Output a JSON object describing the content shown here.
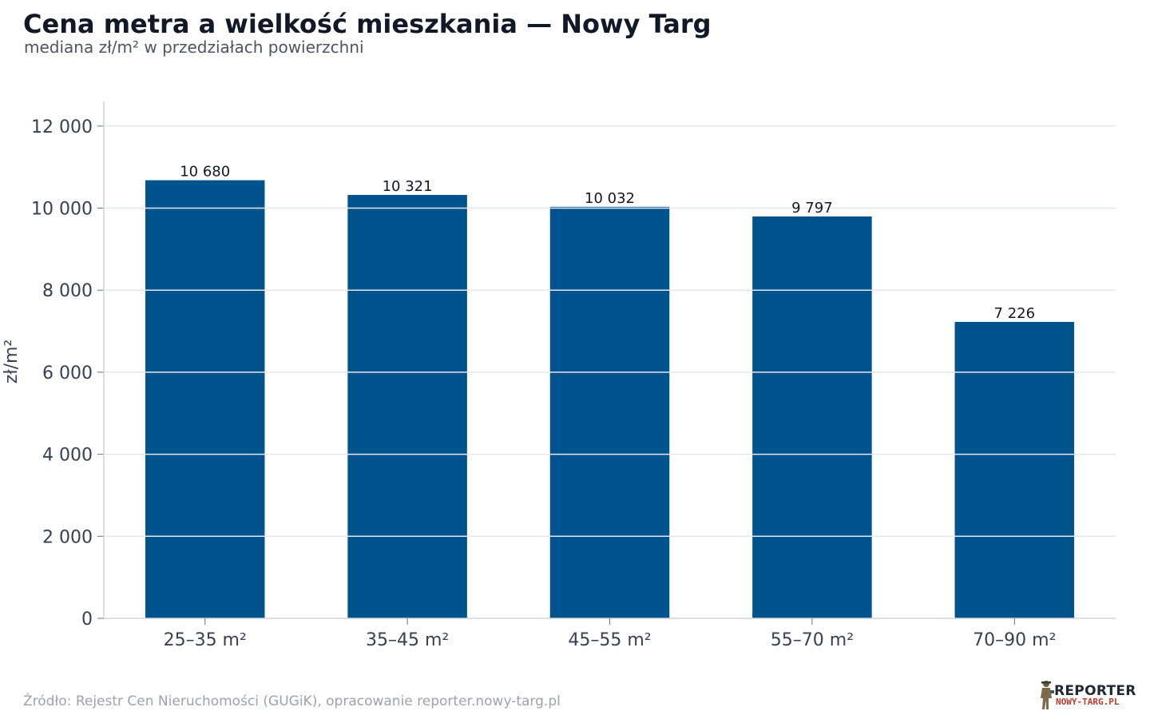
{
  "header": {
    "title": "Cena metra a wielkość mieszkania — Nowy Targ",
    "subtitle": "mediana zł/m² w przedziałach powierzchni"
  },
  "chart_data": {
    "type": "bar",
    "title": "Cena metra a wielkość mieszkania — Nowy Targ",
    "subtitle": "mediana zł/m² w przedziałach powierzchni",
    "xlabel": "",
    "ylabel": "zł/m²",
    "categories": [
      "25–35 m²",
      "35–45 m²",
      "45–55 m²",
      "55–70 m²",
      "70–90 m²"
    ],
    "values": [
      10680,
      10321,
      10032,
      9797,
      7226
    ],
    "value_labels": [
      "10 680",
      "10 321",
      "10 032",
      "9 797",
      "7 226"
    ],
    "ylim": [
      0,
      12600
    ],
    "yticks": [
      0,
      2000,
      4000,
      6000,
      8000,
      10000,
      12000
    ],
    "ytick_labels": [
      "0",
      "2 000",
      "4 000",
      "6 000",
      "8 000",
      "10 000",
      "12 000"
    ],
    "grid": true,
    "bar_color": "#00538c",
    "grid_color": "#e5e7eb",
    "axis_color": "#d1d5db"
  },
  "footer": {
    "source": "Źródło: Rejestr Cen Nieruchomości (GUGiK), opracowanie reporter.nowy-targ.pl",
    "logo_line1": "REPORTER",
    "logo_line2": "NOWY-TARG.PL",
    "logo_icon": "reporter-figure-icon"
  }
}
